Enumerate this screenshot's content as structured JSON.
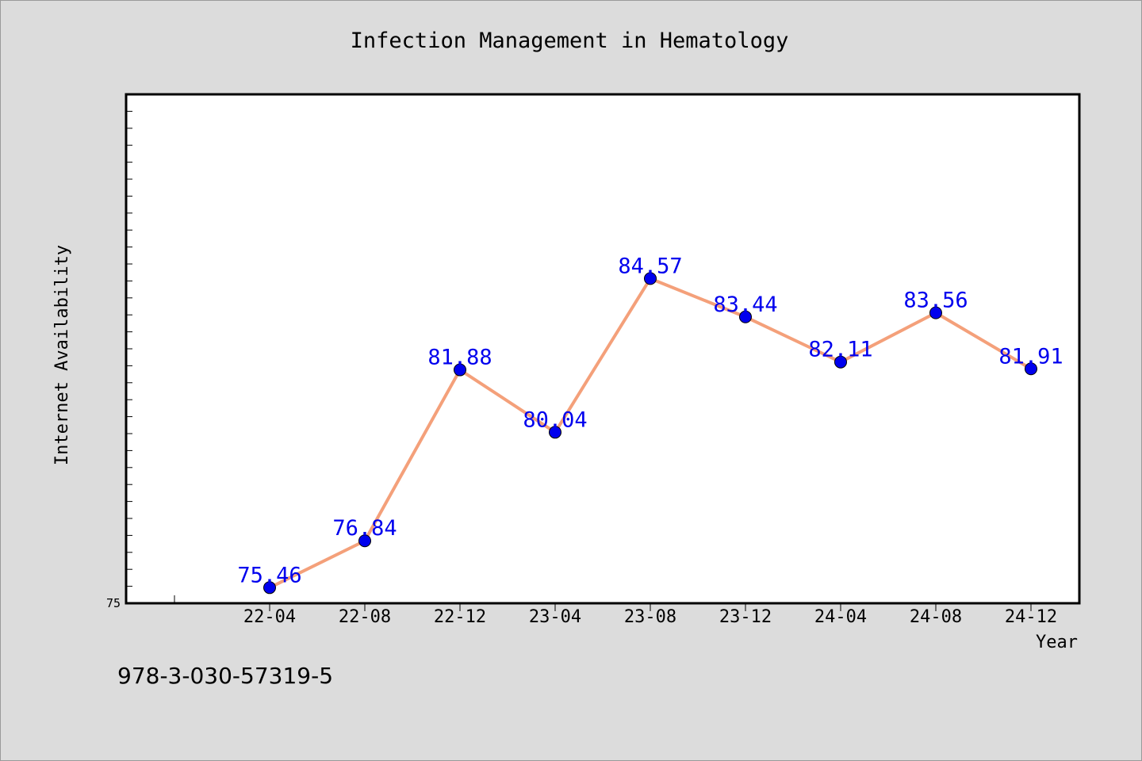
{
  "chart_data": {
    "type": "line",
    "title": "Infection Management in Hematology",
    "xlabel": "Year",
    "ylabel": "Internet Availability",
    "categories": [
      "22-04",
      "22-08",
      "22-12",
      "23-04",
      "23-08",
      "23-12",
      "24-04",
      "24-08",
      "24-12"
    ],
    "series": [
      {
        "values": [
          75.46,
          76.84,
          81.88,
          80.04,
          84.57,
          83.44,
          82.11,
          83.56,
          81.91
        ]
      }
    ],
    "ylim": [
      75,
      90
    ],
    "y_tick_labels": [
      "75"
    ],
    "grid": false,
    "data_labels": true,
    "colors": {
      "line": "#f4a07a",
      "marker": "#0000ee",
      "label": "#0000ee",
      "background": "#dcdcdc",
      "plot_bg": "#ffffff"
    }
  },
  "footer_text": "978-3-030-57319-5"
}
